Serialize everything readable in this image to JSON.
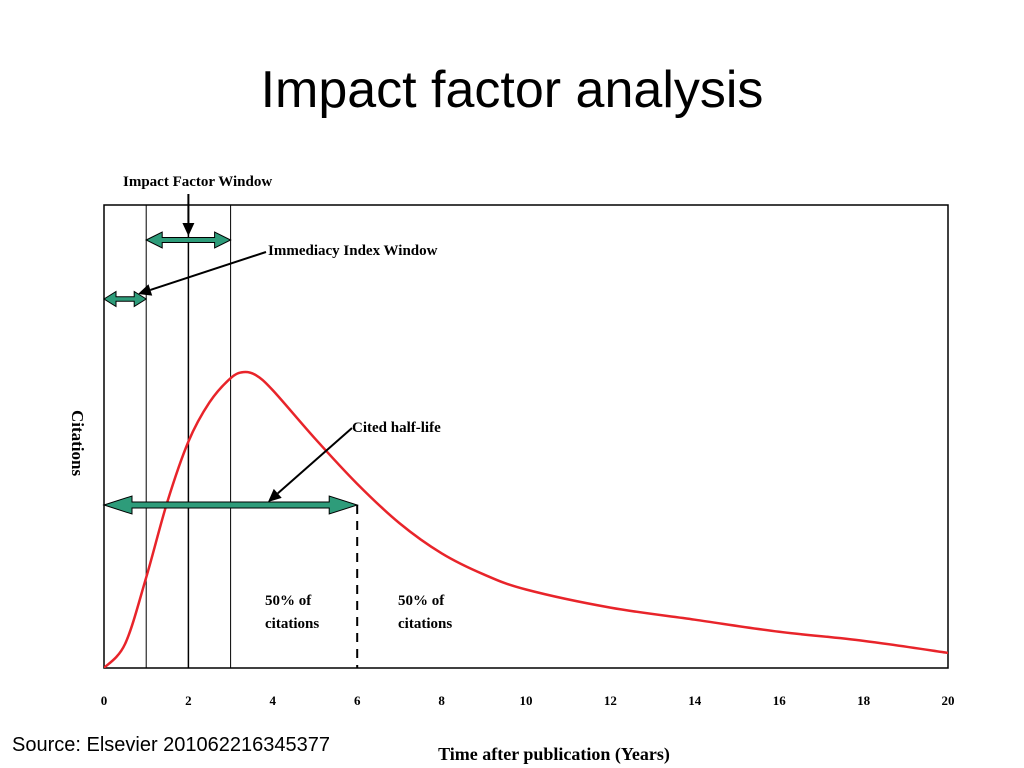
{
  "slide": {
    "title": "Impact factor analysis",
    "source": "Source: Elsevier 201062216345377"
  },
  "colors": {
    "curve": "#e8242a",
    "arrow_fill": "#2e9c7a",
    "frame": "#000000"
  },
  "chart_data": {
    "type": "line",
    "xlabel": "Time after publication (Years)",
    "ylabel": "Citations",
    "xlim": [
      0,
      20
    ],
    "x_ticks": [
      "0",
      "2",
      "4",
      "6",
      "8",
      "10",
      "12",
      "14",
      "16",
      "18",
      "20"
    ],
    "y_ticks": [],
    "grid": false,
    "series": [
      {
        "x": [
          0,
          0.5,
          1,
          1.5,
          2,
          2.5,
          3,
          3.3,
          3.6,
          4,
          5,
          6,
          7,
          8,
          9,
          10,
          12,
          14,
          16,
          18,
          20
        ],
        "y": [
          0.0,
          0.08,
          0.3,
          0.55,
          0.75,
          0.88,
          0.96,
          0.98,
          0.97,
          0.92,
          0.76,
          0.61,
          0.48,
          0.38,
          0.31,
          0.26,
          0.2,
          0.16,
          0.12,
          0.09,
          0.05
        ]
      }
    ],
    "annotations": {
      "impact_factor_window": {
        "label": "Impact Factor Window",
        "x_start": 1,
        "x_end": 3
      },
      "immediacy_index_window": {
        "label": "Immediacy Index Window",
        "x_start": 0,
        "x_end": 1
      },
      "cited_half_life": {
        "label": "Cited half-life",
        "x_start": 0,
        "x_end": 6
      },
      "left_region_label": [
        "50% of",
        "citations"
      ],
      "right_region_label": [
        "50% of",
        "citations"
      ]
    }
  }
}
